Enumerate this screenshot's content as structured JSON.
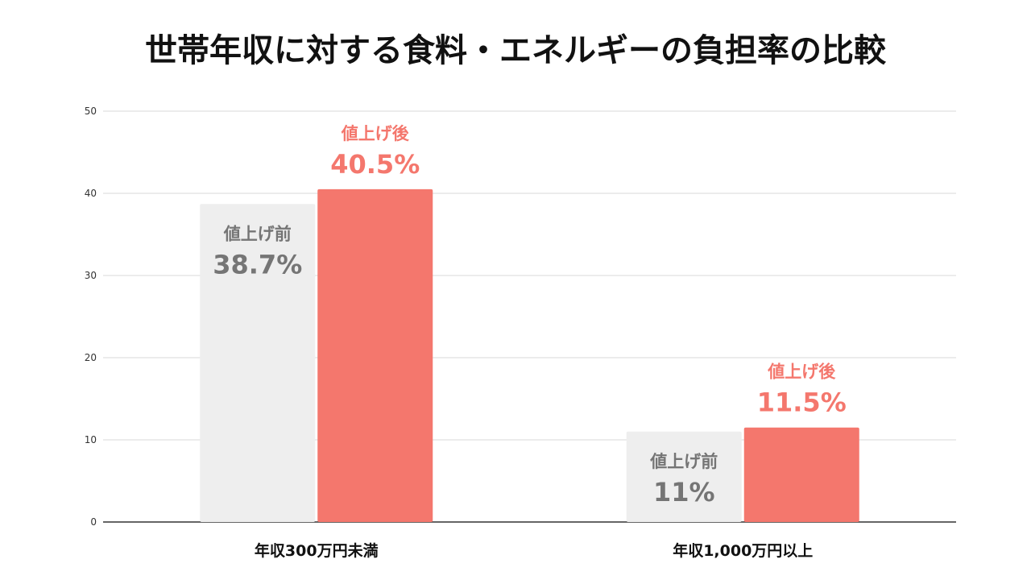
{
  "chart_data": {
    "type": "bar",
    "title": "世帯年収に対する食料・エネルギーの負担率の比較",
    "categories": [
      "年収300万円未満",
      "年収1,000万円以上"
    ],
    "series": [
      {
        "values": [
          38.7,
          11
        ],
        "color": "#eeeeee",
        "label_color": "#757575",
        "data_labels": [
          "値上げ前\n38.7%",
          "値上げ前\n11%"
        ],
        "label_position": "inside-top"
      },
      {
        "values": [
          40.5,
          11.5
        ],
        "color": "#f4776d",
        "label_color": "#f4776d",
        "data_labels": [
          "値上げ後\n40.5%",
          "値上げ後\n11.5%"
        ],
        "label_position": "above"
      }
    ],
    "ylim": [
      0,
      50
    ],
    "yticks": [
      "0",
      "10",
      "20",
      "30",
      "40",
      "50"
    ],
    "xlabel": "",
    "ylabel": "",
    "grid": true,
    "legend": "none"
  }
}
